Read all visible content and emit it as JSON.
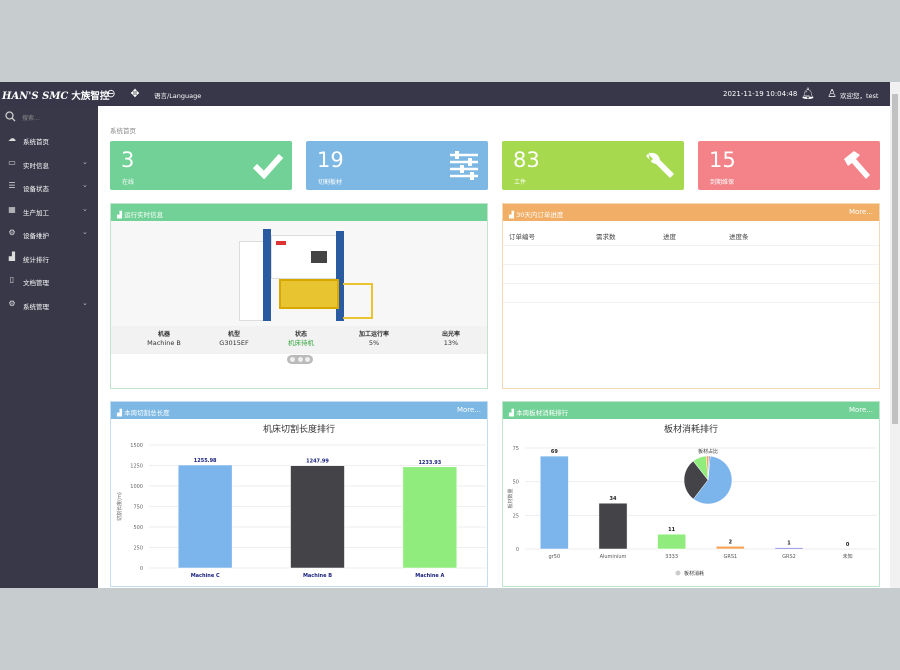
{
  "header": {
    "brand": "HAN'S SMC",
    "brand_cn": "大族智控",
    "language": "语言/Language",
    "datetime": "2021-11-19 10:04:48",
    "welcome": "欢迎您，test"
  },
  "sidebar": {
    "search_placeholder": "搜索...",
    "items": [
      {
        "label": "系统首页",
        "icon": "cloud-icon",
        "chevron": false
      },
      {
        "label": "实时信息",
        "icon": "monitor-icon",
        "chevron": true
      },
      {
        "label": "设备状态",
        "icon": "list-icon",
        "chevron": true
      },
      {
        "label": "生产加工",
        "icon": "grid-icon",
        "chevron": true
      },
      {
        "label": "设备维护",
        "icon": "cogs-icon",
        "chevron": true
      },
      {
        "label": "统计排行",
        "icon": "chart-icon",
        "chevron": false
      },
      {
        "label": "文档管理",
        "icon": "document-icon",
        "chevron": false
      },
      {
        "label": "系统管理",
        "icon": "gear-icon",
        "chevron": true
      }
    ]
  },
  "breadcrumb": "系统首页",
  "cards": [
    {
      "value": "3",
      "label": "在线",
      "color": "#72d196",
      "icon": "check-icon"
    },
    {
      "value": "19",
      "label": "切割板材",
      "color": "#7cb8e3",
      "icon": "sliders-icon"
    },
    {
      "value": "83",
      "label": "工件",
      "color": "#a6d94d",
      "icon": "wrench-icon"
    },
    {
      "value": "15",
      "label": "到期维保",
      "color": "#f38388",
      "icon": "hammer-icon"
    }
  ],
  "realtime": {
    "title": "运行实时信息",
    "color": "#72d196",
    "columns": [
      {
        "label": "机器",
        "value": "Machine B"
      },
      {
        "label": "机型",
        "value": "G3015EF"
      },
      {
        "label": "状态",
        "value": "机床待机",
        "status_color": "#3aa845"
      },
      {
        "label": "加工运行率",
        "value": "5%"
      },
      {
        "label": "出光率",
        "value": "13%"
      }
    ]
  },
  "orders": {
    "title": "30天内订单进度",
    "more": "More...",
    "color": "#f0ae66",
    "headers": [
      "订单编号",
      "需求数",
      "进度",
      "进度条"
    ]
  },
  "cutting": {
    "title": "本周切割总长度",
    "more": "More...",
    "color": "#7cb8e3"
  },
  "material": {
    "title": "本周板材消耗排行",
    "more": "More...",
    "color": "#72d196"
  },
  "chart_data": [
    {
      "type": "bar",
      "title": "机床切割长度排行",
      "ylabel": "切割长度(m)",
      "ylim": [
        0,
        1500
      ],
      "yticks": [
        0,
        250,
        500,
        750,
        1000,
        1250,
        1500
      ],
      "grid": true,
      "categories": [
        "Machine C",
        "Machine B",
        "Machine A"
      ],
      "values": [
        1255.98,
        1247.99,
        1233.93
      ],
      "colors": [
        "#7cb5ec",
        "#434348",
        "#90ed7d"
      ]
    },
    {
      "type": "bar",
      "title": "板材消耗排行",
      "ylabel": "板材数量",
      "ylim": [
        0,
        75
      ],
      "yticks": [
        0,
        25,
        50,
        75
      ],
      "grid": true,
      "legend": "板材消耗",
      "legend_position": "bottom",
      "categories": [
        "gr50",
        "Aluminium",
        "3333",
        "GRS1",
        "GRS2",
        "未知"
      ],
      "values": [
        69,
        34,
        11,
        2,
        1,
        0
      ],
      "colors": [
        "#7cb5ec",
        "#434348",
        "#90ed7d",
        "#f7a35c",
        "#8085e9",
        "#f15c80"
      ],
      "inset_pie": {
        "title": "板材占比",
        "values": [
          69,
          34,
          11,
          2,
          1,
          0
        ]
      }
    }
  ]
}
